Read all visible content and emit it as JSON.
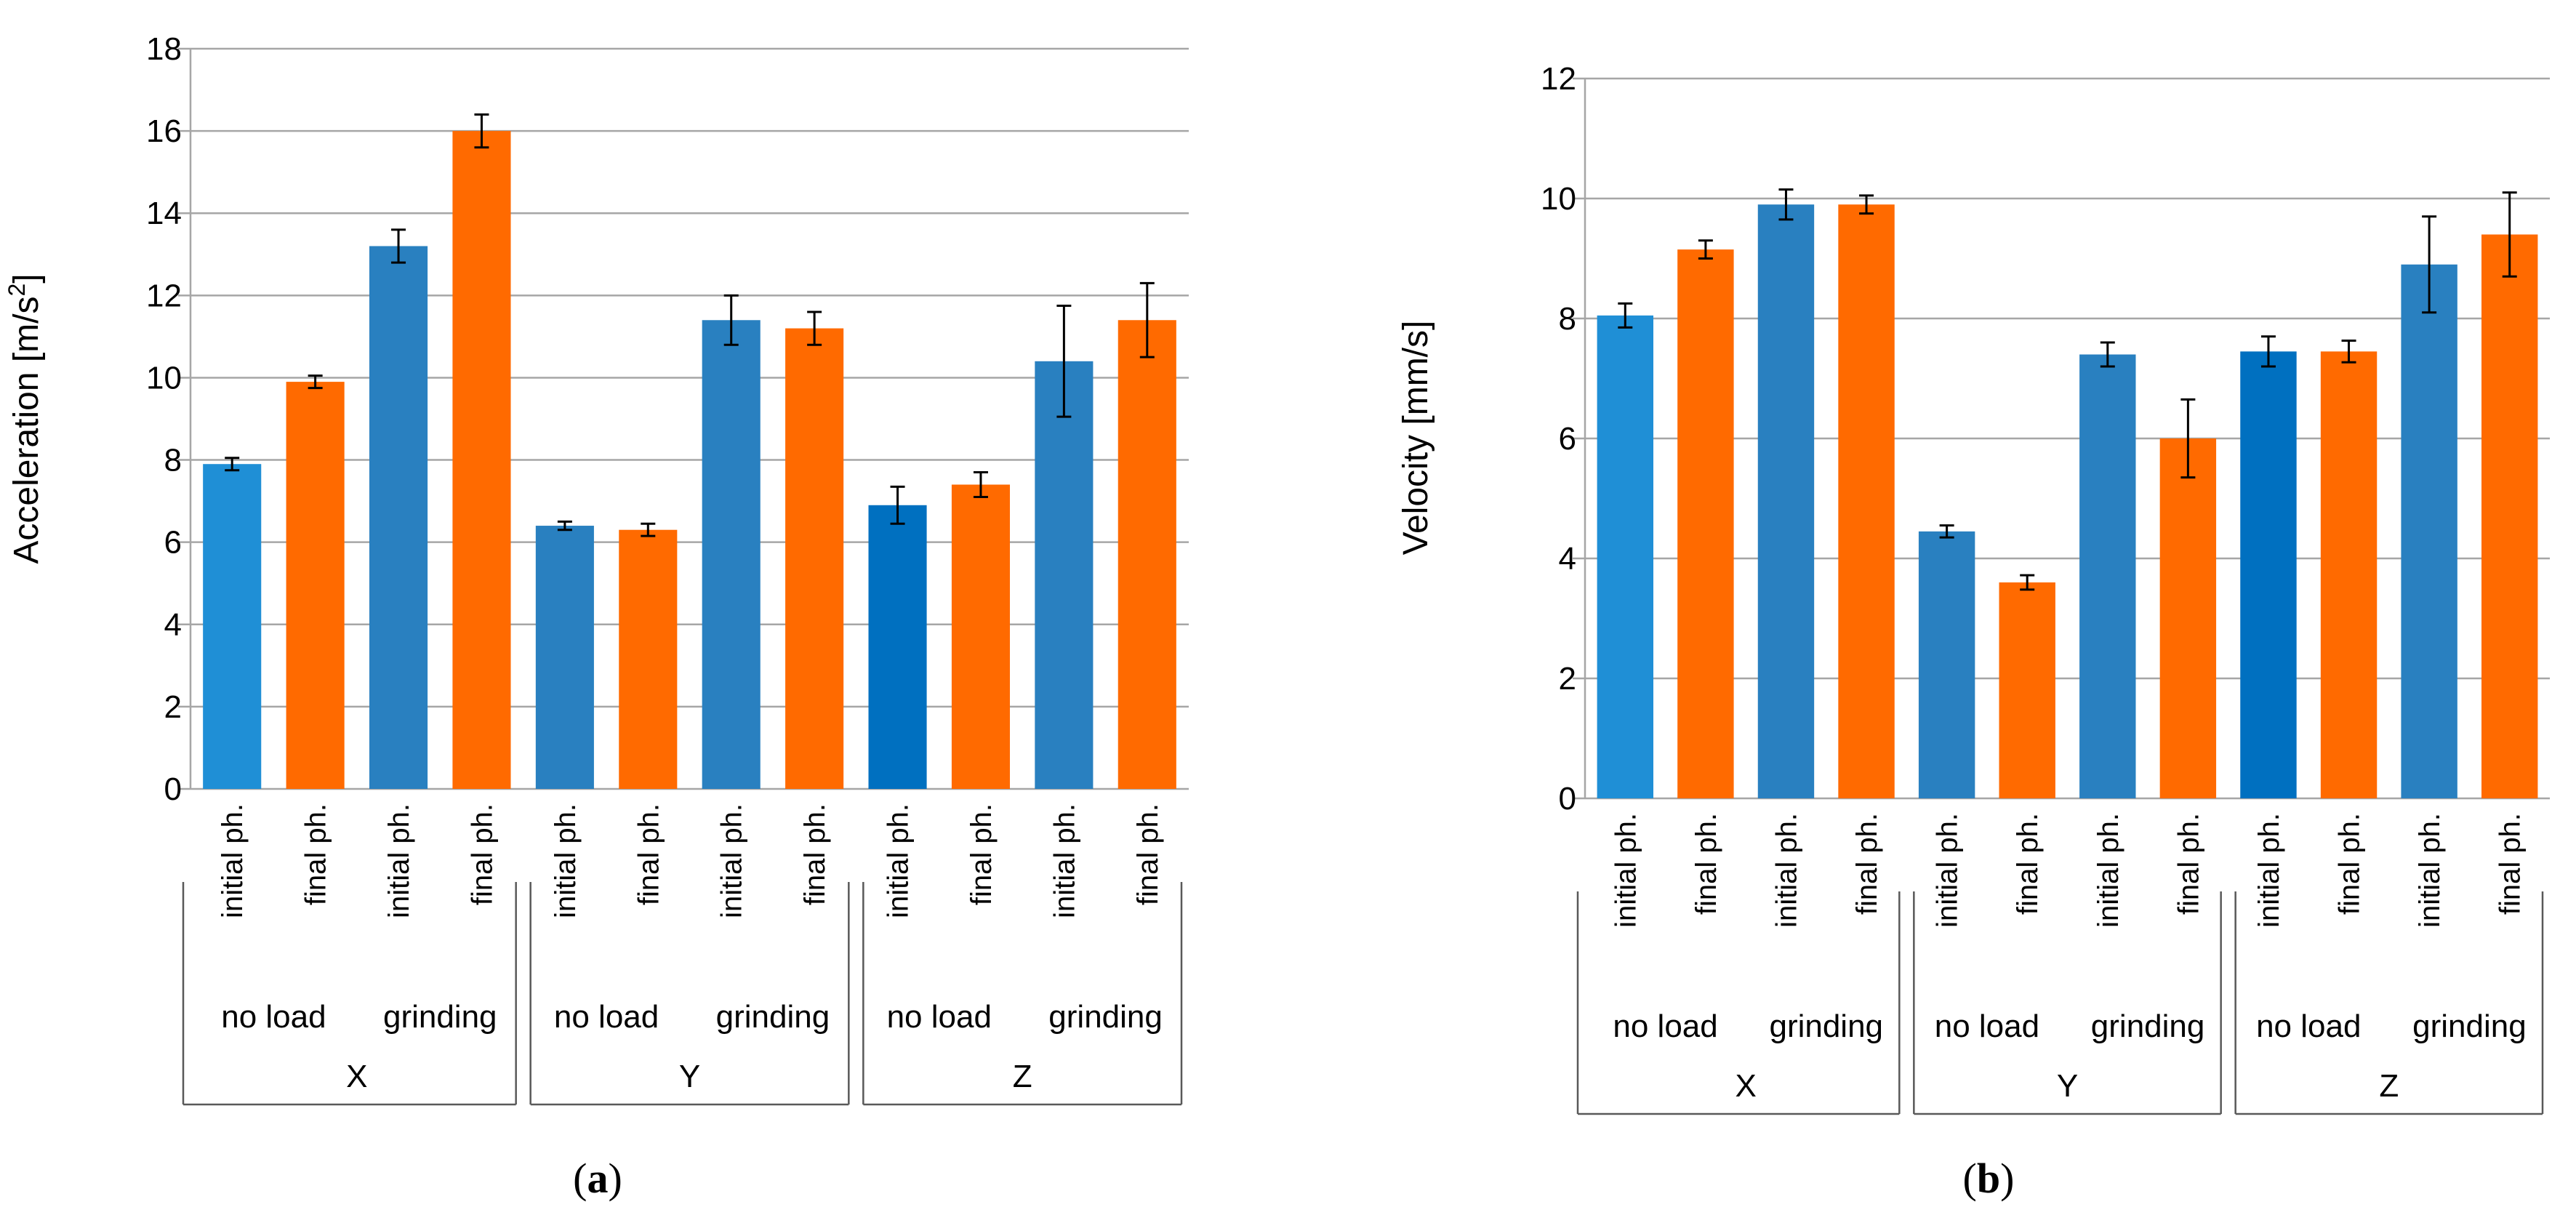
{
  "chart_data": [
    {
      "type": "bar",
      "id": "a",
      "caption_label": "a",
      "ylabel": "Acceleration [m/s",
      "ylabel_sup": "2",
      "ylabel_end": "]",
      "ylim": [
        0,
        18
      ],
      "yticks": [
        0,
        2,
        4,
        6,
        8,
        10,
        12,
        14,
        16,
        18
      ],
      "categories": [
        "initial ph.",
        "final ph.",
        "initial ph.",
        "final ph.",
        "initial ph.",
        "final ph.",
        "initial ph.",
        "final ph.",
        "initial ph.",
        "final ph.",
        "initial ph.",
        "final ph."
      ],
      "values": [
        7.9,
        9.9,
        13.2,
        16.0,
        6.4,
        6.3,
        11.4,
        11.2,
        6.9,
        7.4,
        10.4,
        11.4
      ],
      "errors": [
        0.15,
        0.15,
        0.4,
        0.4,
        0.1,
        0.15,
        0.6,
        0.4,
        0.45,
        0.3,
        1.35,
        0.9
      ],
      "colors": [
        "#1F8FD6",
        "#FF6A00",
        "#2980C0",
        "#FF6A00",
        "#2980C0",
        "#FF6A00",
        "#2980C0",
        "#FF6A00",
        "#0070C0",
        "#FF6A00",
        "#2980C0",
        "#FF6A00"
      ],
      "load_labels": [
        "no load",
        "grinding",
        "no load",
        "grinding",
        "no load",
        "grinding"
      ],
      "axis_labels": [
        "X",
        "Y",
        "Z"
      ]
    },
    {
      "type": "bar",
      "id": "b",
      "caption_label": "b",
      "ylabel": "Velocity [mm/s]",
      "ylim": [
        0,
        12
      ],
      "yticks": [
        0,
        2,
        4,
        6,
        8,
        10,
        12
      ],
      "categories": [
        "initial ph.",
        "final ph.",
        "initial ph.",
        "final ph.",
        "initial ph.",
        "final ph.",
        "initial ph.",
        "final ph.",
        "initial ph.",
        "final ph.",
        "initial ph.",
        "final ph."
      ],
      "values": [
        8.05,
        9.15,
        9.9,
        9.9,
        4.45,
        3.6,
        7.4,
        6.0,
        7.45,
        7.45,
        8.9,
        9.4
      ],
      "errors": [
        0.2,
        0.15,
        0.25,
        0.15,
        0.1,
        0.12,
        0.2,
        0.65,
        0.25,
        0.18,
        0.8,
        0.7
      ],
      "colors": [
        "#1F8FD6",
        "#FF6A00",
        "#2980C0",
        "#FF6A00",
        "#2980C0",
        "#FF6A00",
        "#2980C0",
        "#FF6A00",
        "#0070C0",
        "#FF6A00",
        "#2980C0",
        "#FF6A00"
      ],
      "load_labels": [
        "no load",
        "grinding",
        "no load",
        "grinding",
        "no load",
        "grinding"
      ],
      "axis_labels": [
        "X",
        "Y",
        "Z"
      ]
    }
  ]
}
